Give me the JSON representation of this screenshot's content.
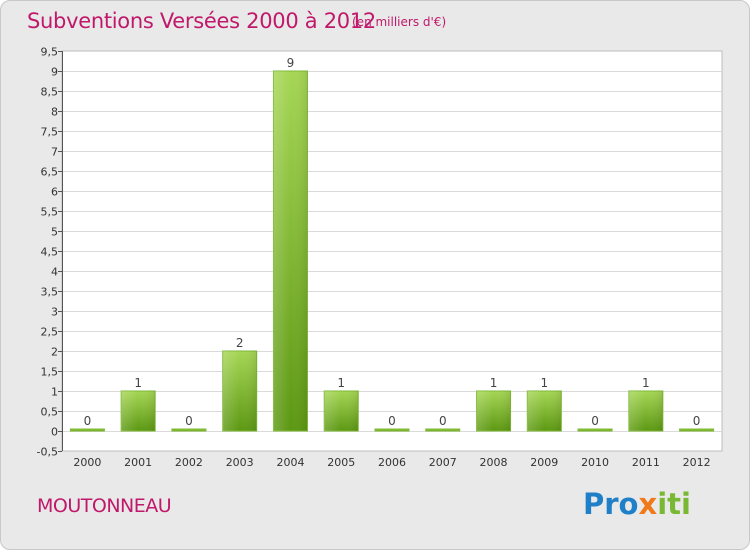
{
  "header": {
    "title": "Subventions Versées 2000 à 2012",
    "subtitle": "(en milliers d'€)"
  },
  "footer": {
    "commune": "MOUTONNEAU",
    "logo_text": [
      "Pro",
      "x",
      "iti"
    ]
  },
  "colors": {
    "title": "#c0186a",
    "bar_light": "#9ccf4b",
    "bar_dark": "#5e9a14",
    "plot_bg": "#ffffff",
    "frame_bg": "#e9e9e9",
    "grid": "#d6d6d6"
  },
  "chart_data": {
    "type": "bar",
    "title": "Subventions Versées 2000 à 2012",
    "subtitle": "(en milliers d'€)",
    "categories": [
      "2000",
      "2001",
      "2002",
      "2003",
      "2004",
      "2005",
      "2006",
      "2007",
      "2008",
      "2009",
      "2010",
      "2011",
      "2012"
    ],
    "values": [
      0,
      1,
      0,
      2,
      9,
      1,
      0,
      0,
      1,
      1,
      0,
      1,
      0
    ],
    "data_labels": [
      "0",
      "1",
      "0",
      "2",
      "9",
      "1",
      "0",
      "0",
      "1",
      "1",
      "0",
      "1",
      "0"
    ],
    "ylim": [
      -0.5,
      9.5
    ],
    "yticks": [
      -0.5,
      0,
      0.5,
      1,
      1.5,
      2,
      2.5,
      3,
      3.5,
      4,
      4.5,
      5,
      5.5,
      6,
      6.5,
      7,
      7.5,
      8,
      8.5,
      9,
      9.5
    ],
    "ytick_labels": [
      "-0,5",
      "0",
      "0,5",
      "1",
      "1,5",
      "2",
      "2,5",
      "3",
      "3,5",
      "4",
      "4,5",
      "5",
      "5,5",
      "6",
      "6,5",
      "7",
      "7,5",
      "8",
      "8,5",
      "9",
      "9,5"
    ],
    "grid": true,
    "legend": "none"
  }
}
